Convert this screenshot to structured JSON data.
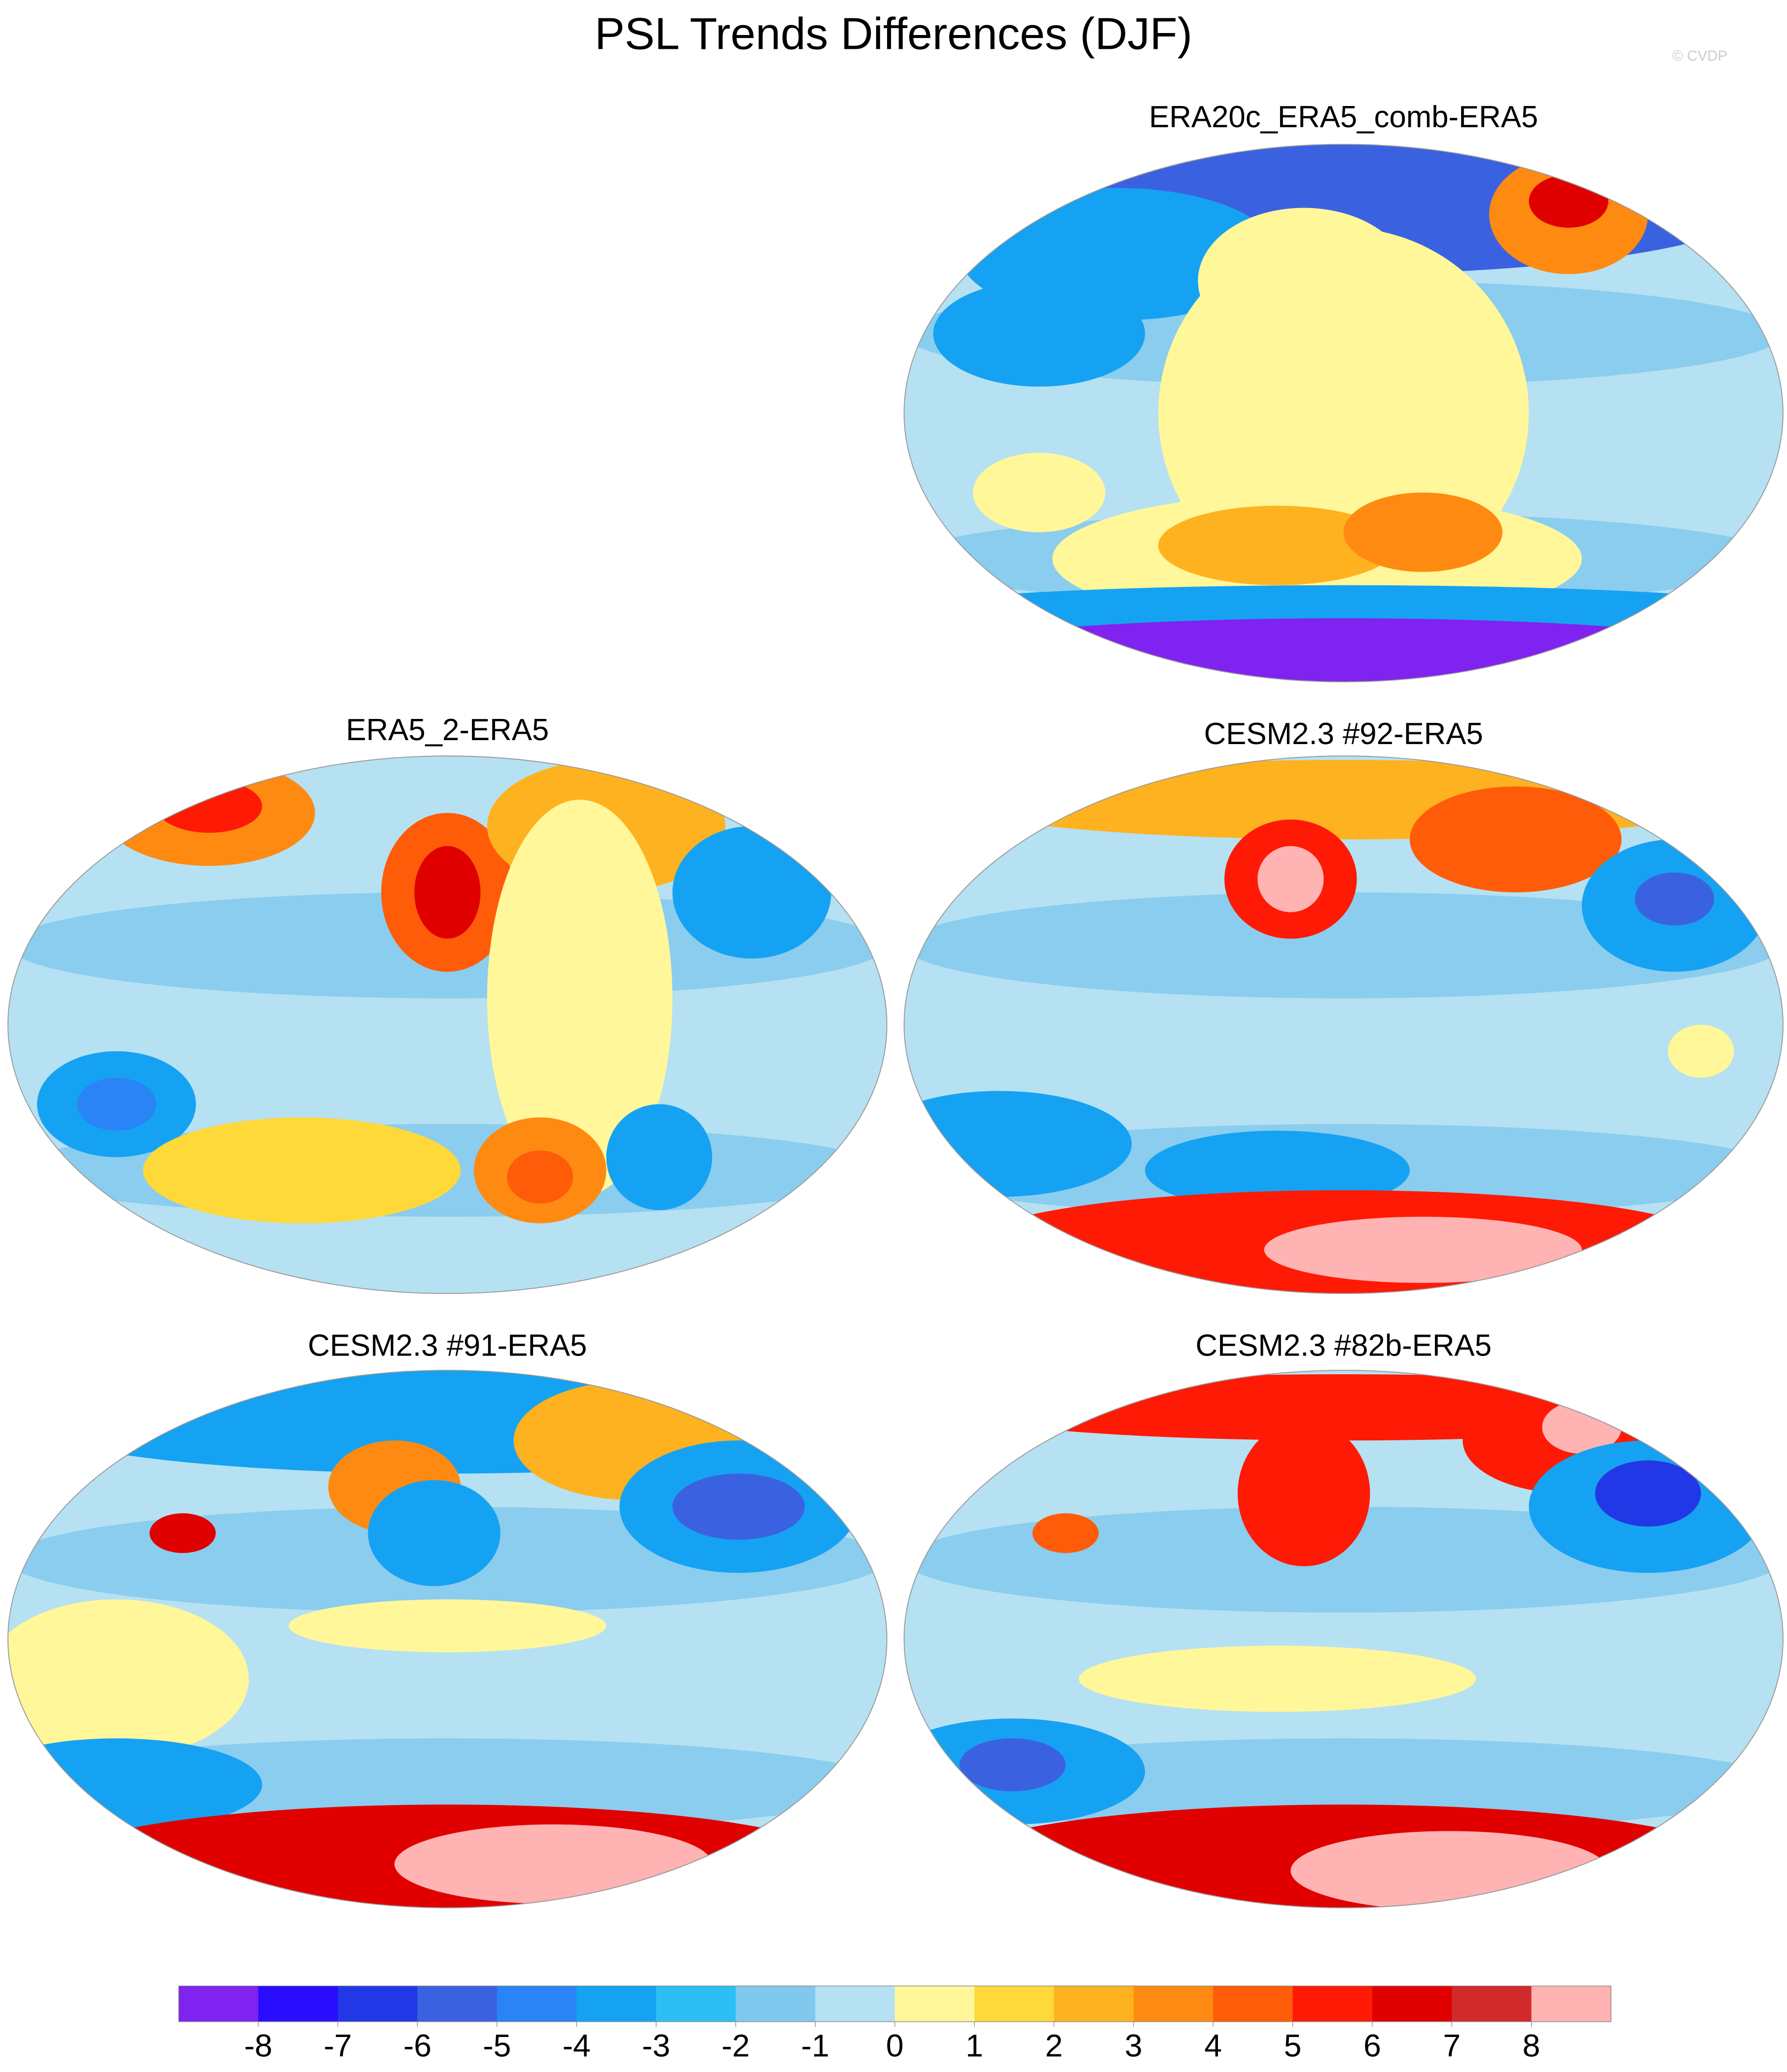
{
  "title": "PSL Trends Differences (DJF)",
  "watermark": "© CVDP",
  "panels": [
    {
      "title": "ERA20c_ERA5_comb-ERA5"
    },
    {
      "title": "ERA5_2-ERA5"
    },
    {
      "title": "CESM2.3 #92-ERA5"
    },
    {
      "title": "CESM2.3 #91-ERA5"
    },
    {
      "title": "CESM2.3 #82b-ERA5"
    }
  ],
  "colorbar": {
    "colors": [
      "#8022f0",
      "#2a0cff",
      "#2238e6",
      "#3a62e0",
      "#2a84f5",
      "#16a2f2",
      "#2cbff5",
      "#80c8ee",
      "#b5e1f2",
      "#fff79a",
      "#ffd83a",
      "#ffb21f",
      "#ff8a12",
      "#ff5c0a",
      "#ff1a05",
      "#e00000",
      "#d02a2a",
      "#ffb3b3"
    ],
    "ticks": [
      -8,
      -7,
      -6,
      -5,
      -4,
      -3,
      -2,
      -1,
      0,
      1,
      2,
      3,
      4,
      5,
      6,
      7,
      8
    ]
  }
}
